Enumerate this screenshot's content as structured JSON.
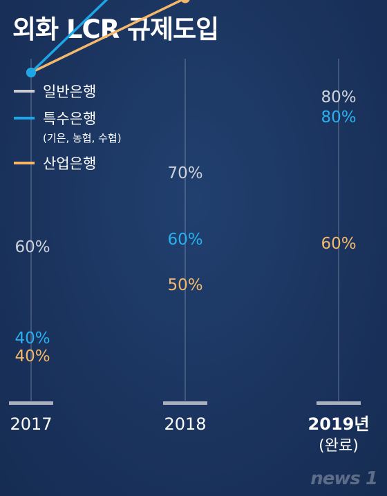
{
  "title": "외화 LCR 규제도입",
  "watermark": "news 1",
  "chart_data": {
    "type": "line",
    "categories": [
      "2017",
      "2018",
      "2019년"
    ],
    "category_sublabels": [
      "",
      "",
      "(완료)"
    ],
    "series": [
      {
        "name": "일반은행",
        "sublabel": "",
        "color": "#c9ccd4",
        "values": [
          60,
          70,
          80
        ]
      },
      {
        "name": "특수은행",
        "sublabel": "(기은, 농협, 수협)",
        "color": "#1ea7e8",
        "values": [
          40,
          60,
          80
        ]
      },
      {
        "name": "산업은행",
        "sublabel": "",
        "color": "#f5b86a",
        "values": [
          40,
          50,
          60
        ]
      }
    ],
    "data_labels": [
      [
        "60%",
        "70%",
        "80%"
      ],
      [
        "40%",
        "60%",
        "80%"
      ],
      [
        "40%",
        "50%",
        "60%"
      ]
    ],
    "legend_position": "top-left",
    "grid": "vertical"
  }
}
